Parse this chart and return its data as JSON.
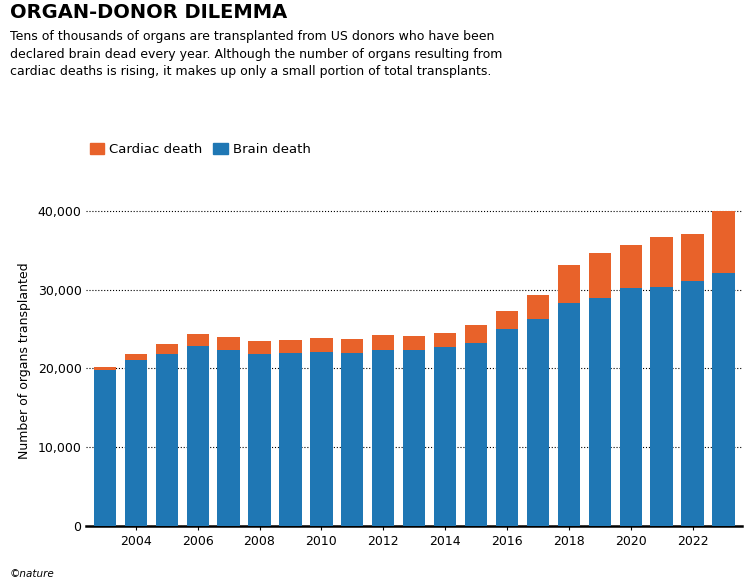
{
  "title": "ORGAN-DONOR DILEMMA",
  "subtitle": "Tens of thousands of organs are transplanted from US donors who have been\ndeclared brain dead every year. Although the number of organs resulting from\ncardiac deaths is rising, it makes up only a small portion of total transplants.",
  "ylabel": "Number of organs transplanted",
  "legend_labels": [
    "Cardiac death",
    "Brain death"
  ],
  "brain_color": "#1f77b4",
  "cardiac_color": "#e8622a",
  "years": [
    2003,
    2004,
    2005,
    2006,
    2007,
    2008,
    2009,
    2010,
    2011,
    2012,
    2013,
    2014,
    2015,
    2016,
    2017,
    2018,
    2019,
    2020,
    2021,
    2022,
    2023
  ],
  "brain_death": [
    19800,
    21100,
    21800,
    22800,
    22400,
    21900,
    22000,
    22100,
    22000,
    22300,
    22400,
    22700,
    23200,
    25000,
    26300,
    28300,
    29000,
    30200,
    30400,
    31100,
    32200
  ],
  "cardiac_death": [
    350,
    800,
    1300,
    1650,
    1600,
    1600,
    1650,
    1750,
    1700,
    1950,
    1750,
    1800,
    2350,
    2300,
    3000,
    4900,
    5700,
    5500,
    6300,
    6000,
    7800
  ],
  "ylim": [
    0,
    42000
  ],
  "yticks": [
    0,
    10000,
    20000,
    30000,
    40000
  ],
  "ytick_labels": [
    "0",
    "10,000",
    "20,000",
    "30,000",
    "40,000"
  ],
  "background_color": "#ffffff",
  "bar_width": 0.72,
  "title_fontsize": 14,
  "subtitle_fontsize": 9.0,
  "axis_fontsize": 9,
  "legend_fontsize": 9.5
}
